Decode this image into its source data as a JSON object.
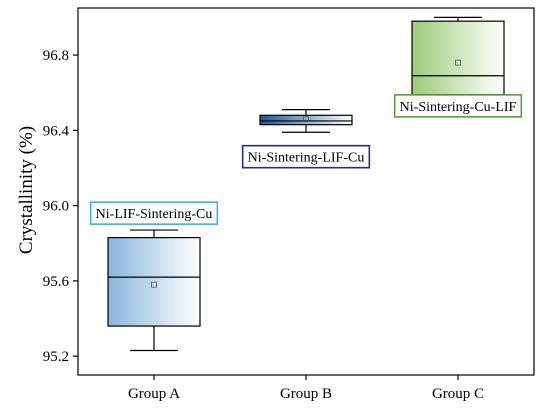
{
  "chart_data": {
    "type": "box",
    "title": "",
    "xlabel": "",
    "ylabel": "Crystallinity (%)",
    "ylim": [
      95.1,
      97.05
    ],
    "yticks": [
      95.2,
      95.6,
      96.0,
      96.4,
      96.8
    ],
    "ytick_labels": [
      "95.2",
      "95.6",
      "96.0",
      "96.4",
      "96.8"
    ],
    "categories": [
      "Group A",
      "Group B",
      "Group C"
    ],
    "grid": false,
    "boxes": [
      {
        "category": "Group A",
        "min": 95.23,
        "q1": 95.36,
        "median": 95.62,
        "q3": 95.83,
        "max": 95.87,
        "mean": 95.58,
        "color": "#8ab6dc"
      },
      {
        "category": "Group B",
        "min": 96.39,
        "q1": 96.43,
        "median": 96.45,
        "q3": 96.48,
        "max": 96.51,
        "mean": 96.46,
        "color": "#1b5a9a"
      },
      {
        "category": "Group C",
        "min": 96.56,
        "q1": 96.59,
        "median": 96.69,
        "q3": 96.98,
        "max": 97.0,
        "mean": 96.76,
        "color": "#9ccc78"
      }
    ],
    "annotations": [
      {
        "text": "Ni-LIF-Sintering-Cu",
        "border_color": "#41b0e4",
        "anchor_category": "Group A",
        "anchor_value": 95.96
      },
      {
        "text": "Ni-Sintering-LIF-Cu",
        "border_color": "#1f2f8a",
        "anchor_category": "Group B",
        "anchor_value": 96.26
      },
      {
        "text": "Ni-Sintering-Cu-LIF",
        "border_color": "#5a9e3a",
        "anchor_category": "Group C",
        "anchor_value": 96.53
      }
    ]
  }
}
